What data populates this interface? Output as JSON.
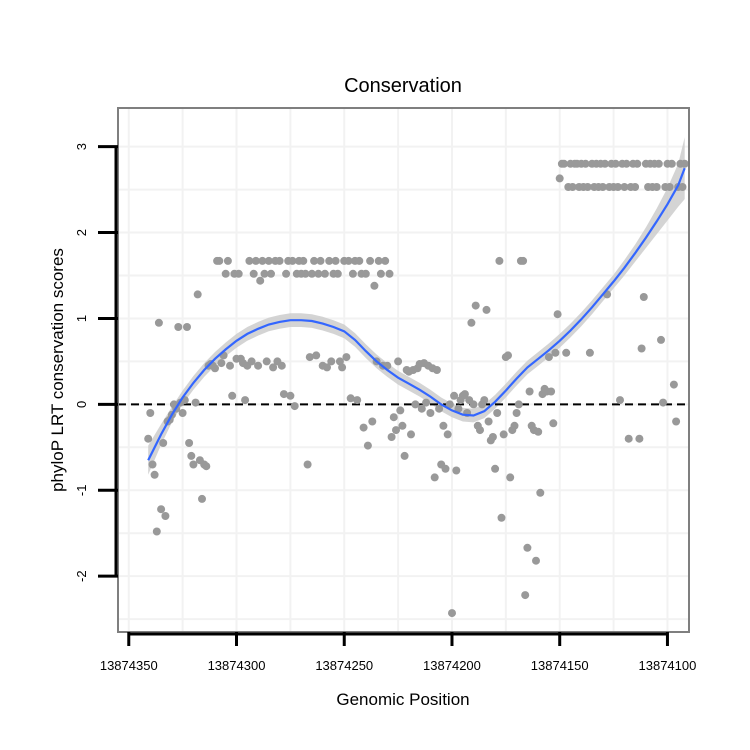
{
  "chart_data": {
    "type": "scatter",
    "title": "Conservation",
    "xlabel": "Genomic Position",
    "ylabel": "phyloP LRT conservation scores",
    "xlim": [
      13874355,
      13874090
    ],
    "ylim": [
      -2.65,
      3.45
    ],
    "x_reversed": true,
    "x_ticks": [
      13874350,
      13874300,
      13874250,
      13874200,
      13874150,
      13874100
    ],
    "x_tick_labels": [
      "13874350",
      "13874300",
      "13874250",
      "13874200",
      "13874150",
      "13874100"
    ],
    "y_ticks": [
      -2,
      -1,
      0,
      1,
      2,
      3
    ],
    "y_tick_labels": [
      "-2",
      "-1",
      "0",
      "1",
      "2",
      "3"
    ],
    "grid": true,
    "reference_line": {
      "y": 0,
      "style": "dashed",
      "color": "#000000"
    },
    "colors": {
      "points": "#999999",
      "smooth": "#3366ff",
      "band": "#cccccc",
      "panel_border": "#7f7f7f",
      "grid": "#f2f2f2"
    },
    "points": [
      [
        13874341,
        -0.4
      ],
      [
        13874340,
        -0.1
      ],
      [
        13874339,
        -0.7
      ],
      [
        13874338,
        -0.82
      ],
      [
        13874337,
        -1.48
      ],
      [
        13874336,
        0.95
      ],
      [
        13874335,
        -1.22
      ],
      [
        13874334,
        -0.45
      ],
      [
        13874333,
        -1.3
      ],
      [
        13874332,
        -0.2
      ],
      [
        13874331,
        -0.18
      ],
      [
        13874330,
        -0.12
      ],
      [
        13874329,
        0.0
      ],
      [
        13874328,
        -0.05
      ],
      [
        13874327,
        0.9
      ],
      [
        13874326,
        0.02
      ],
      [
        13874325,
        -0.1
      ],
      [
        13874324,
        0.05
      ],
      [
        13874323,
        0.9
      ],
      [
        13874322,
        -0.45
      ],
      [
        13874321,
        -0.6
      ],
      [
        13874320,
        -0.7
      ],
      [
        13874319,
        0.02
      ],
      [
        13874318,
        1.28
      ],
      [
        13874317,
        -0.65
      ],
      [
        13874316,
        -1.1
      ],
      [
        13874315,
        -0.7
      ],
      [
        13874314,
        -0.72
      ],
      [
        13874313,
        0.45
      ],
      [
        13874312,
        0.47
      ],
      [
        13874311,
        0.45
      ],
      [
        13874310,
        0.42
      ],
      [
        13874309,
        1.67
      ],
      [
        13874308,
        1.67
      ],
      [
        13874307,
        0.48
      ],
      [
        13874306,
        0.57
      ],
      [
        13874305,
        1.52
      ],
      [
        13874304,
        1.67
      ],
      [
        13874303,
        0.45
      ],
      [
        13874302,
        0.1
      ],
      [
        13874301,
        1.52
      ],
      [
        13874300,
        0.53
      ],
      [
        13874299,
        1.52
      ],
      [
        13874298,
        0.53
      ],
      [
        13874297,
        0.48
      ],
      [
        13874296,
        0.05
      ],
      [
        13874295,
        0.45
      ],
      [
        13874294,
        1.67
      ],
      [
        13874293,
        0.5
      ],
      [
        13874292,
        1.52
      ],
      [
        13874291,
        1.67
      ],
      [
        13874290,
        0.45
      ],
      [
        13874289,
        1.44
      ],
      [
        13874288,
        1.67
      ],
      [
        13874287,
        1.52
      ],
      [
        13874286,
        0.5
      ],
      [
        13874285,
        1.67
      ],
      [
        13874284,
        1.52
      ],
      [
        13874283,
        0.43
      ],
      [
        13874282,
        1.67
      ],
      [
        13874281,
        0.5
      ],
      [
        13874280,
        1.67
      ],
      [
        13874279,
        0.45
      ],
      [
        13874278,
        0.12
      ],
      [
        13874277,
        1.52
      ],
      [
        13874276,
        1.67
      ],
      [
        13874275,
        0.1
      ],
      [
        13874274,
        1.67
      ],
      [
        13874273,
        -0.02
      ],
      [
        13874272,
        1.52
      ],
      [
        13874271,
        1.67
      ],
      [
        13874270,
        1.52
      ],
      [
        13874269,
        1.67
      ],
      [
        13874268,
        1.52
      ],
      [
        13874267,
        -0.7
      ],
      [
        13874266,
        0.55
      ],
      [
        13874265,
        1.52
      ],
      [
        13874264,
        1.67
      ],
      [
        13874263,
        0.57
      ],
      [
        13874262,
        1.52
      ],
      [
        13874261,
        1.67
      ],
      [
        13874260,
        0.45
      ],
      [
        13874259,
        1.52
      ],
      [
        13874258,
        0.43
      ],
      [
        13874257,
        1.67
      ],
      [
        13874256,
        0.5
      ],
      [
        13874255,
        1.52
      ],
      [
        13874254,
        1.67
      ],
      [
        13874253,
        1.52
      ],
      [
        13874252,
        0.5
      ],
      [
        13874251,
        0.43
      ],
      [
        13874250,
        1.67
      ],
      [
        13874249,
        0.55
      ],
      [
        13874248,
        1.67
      ],
      [
        13874247,
        0.07
      ],
      [
        13874246,
        1.52
      ],
      [
        13874245,
        1.67
      ],
      [
        13874244,
        0.05
      ],
      [
        13874243,
        1.67
      ],
      [
        13874242,
        1.52
      ],
      [
        13874241,
        -0.27
      ],
      [
        13874240,
        1.52
      ],
      [
        13874239,
        -0.48
      ],
      [
        13874238,
        1.67
      ],
      [
        13874237,
        -0.2
      ],
      [
        13874236,
        1.38
      ],
      [
        13874235,
        0.5
      ],
      [
        13874234,
        1.67
      ],
      [
        13874233,
        1.52
      ],
      [
        13874232,
        0.45
      ],
      [
        13874231,
        1.67
      ],
      [
        13874230,
        0.45
      ],
      [
        13874229,
        1.52
      ],
      [
        13874228,
        -0.38
      ],
      [
        13874227,
        -0.15
      ],
      [
        13874226,
        -0.3
      ],
      [
        13874225,
        0.5
      ],
      [
        13874224,
        -0.07
      ],
      [
        13874223,
        -0.25
      ],
      [
        13874222,
        -0.6
      ],
      [
        13874221,
        0.4
      ],
      [
        13874220,
        0.38
      ],
      [
        13874219,
        -0.35
      ],
      [
        13874218,
        0.4
      ],
      [
        13874217,
        0.0
      ],
      [
        13874216,
        0.42
      ],
      [
        13874215,
        0.47
      ],
      [
        13874214,
        -0.05
      ],
      [
        13874213,
        0.48
      ],
      [
        13874212,
        0.02
      ],
      [
        13874211,
        0.45
      ],
      [
        13874210,
        -0.1
      ],
      [
        13874209,
        0.42
      ],
      [
        13874208,
        -0.85
      ],
      [
        13874207,
        0.4
      ],
      [
        13874206,
        -0.05
      ],
      [
        13874205,
        -0.7
      ],
      [
        13874204,
        -0.25
      ],
      [
        13874203,
        -0.75
      ],
      [
        13874202,
        -0.35
      ],
      [
        13874201,
        0.0
      ],
      [
        13874200,
        -2.43
      ],
      [
        13874199,
        0.1
      ],
      [
        13874198,
        -0.77
      ],
      [
        13874197,
        -0.05
      ],
      [
        13874196,
        0.05
      ],
      [
        13874195,
        0.1
      ],
      [
        13874194,
        0.12
      ],
      [
        13874193,
        -0.1
      ],
      [
        13874192,
        0.05
      ],
      [
        13874191,
        0.95
      ],
      [
        13874190,
        0.0
      ],
      [
        13874189,
        1.15
      ],
      [
        13874188,
        -0.25
      ],
      [
        13874187,
        -0.3
      ],
      [
        13874186,
        0.0
      ],
      [
        13874185,
        0.05
      ],
      [
        13874184,
        1.1
      ],
      [
        13874183,
        -0.2
      ],
      [
        13874182,
        -0.42
      ],
      [
        13874181,
        -0.38
      ],
      [
        13874180,
        -0.75
      ],
      [
        13874179,
        -0.1
      ],
      [
        13874178,
        1.67
      ],
      [
        13874177,
        -1.32
      ],
      [
        13874176,
        -0.35
      ],
      [
        13874175,
        0.55
      ],
      [
        13874174,
        0.57
      ],
      [
        13874173,
        -0.85
      ],
      [
        13874172,
        -0.3
      ],
      [
        13874171,
        -0.25
      ],
      [
        13874170,
        -0.1
      ],
      [
        13874169,
        0.0
      ],
      [
        13874168,
        1.67
      ],
      [
        13874167,
        1.67
      ],
      [
        13874166,
        -2.22
      ],
      [
        13874165,
        -1.67
      ],
      [
        13874164,
        0.15
      ],
      [
        13874163,
        -0.25
      ],
      [
        13874162,
        -0.3
      ],
      [
        13874161,
        -1.82
      ],
      [
        13874160,
        -0.32
      ],
      [
        13874159,
        -1.03
      ],
      [
        13874158,
        0.12
      ],
      [
        13874157,
        0.18
      ],
      [
        13874156,
        0.15
      ],
      [
        13874155,
        0.55
      ],
      [
        13874154,
        0.15
      ],
      [
        13874153,
        -0.22
      ],
      [
        13874152,
        0.6
      ],
      [
        13874151,
        1.05
      ],
      [
        13874150,
        2.63
      ],
      [
        13874149,
        2.8
      ],
      [
        13874148,
        2.8
      ],
      [
        13874147,
        0.6
      ],
      [
        13874146,
        2.53
      ],
      [
        13874145,
        2.8
      ],
      [
        13874144,
        2.53
      ],
      [
        13874143,
        2.8
      ],
      [
        13874142,
        2.8
      ],
      [
        13874141,
        2.53
      ],
      [
        13874140,
        2.8
      ],
      [
        13874139,
        2.53
      ],
      [
        13874138,
        2.8
      ],
      [
        13874137,
        2.53
      ],
      [
        13874136,
        0.6
      ],
      [
        13874135,
        2.8
      ],
      [
        13874134,
        2.53
      ],
      [
        13874133,
        2.8
      ],
      [
        13874132,
        2.53
      ],
      [
        13874131,
        2.8
      ],
      [
        13874130,
        2.53
      ],
      [
        13874129,
        2.8
      ],
      [
        13874128,
        1.28
      ],
      [
        13874127,
        2.53
      ],
      [
        13874126,
        2.8
      ],
      [
        13874125,
        2.53
      ],
      [
        13874124,
        2.8
      ],
      [
        13874123,
        2.53
      ],
      [
        13874122,
        0.05
      ],
      [
        13874121,
        2.8
      ],
      [
        13874120,
        2.53
      ],
      [
        13874119,
        2.8
      ],
      [
        13874118,
        -0.4
      ],
      [
        13874117,
        2.53
      ],
      [
        13874116,
        2.8
      ],
      [
        13874115,
        2.53
      ],
      [
        13874114,
        2.8
      ],
      [
        13874113,
        -0.4
      ],
      [
        13874112,
        0.65
      ],
      [
        13874111,
        1.25
      ],
      [
        13874110,
        2.8
      ],
      [
        13874109,
        2.53
      ],
      [
        13874108,
        2.8
      ],
      [
        13874107,
        2.53
      ],
      [
        13874106,
        2.8
      ],
      [
        13874105,
        2.53
      ],
      [
        13874104,
        2.8
      ],
      [
        13874103,
        0.75
      ],
      [
        13874102,
        0.02
      ],
      [
        13874101,
        2.53
      ],
      [
        13874100,
        2.8
      ],
      [
        13874099,
        2.53
      ],
      [
        13874098,
        2.8
      ],
      [
        13874097,
        0.23
      ],
      [
        13874096,
        -0.2
      ],
      [
        13874095,
        2.53
      ],
      [
        13874094,
        2.8
      ],
      [
        13874093,
        2.53
      ],
      [
        13874092,
        2.8
      ]
    ],
    "smooth": [
      {
        "x": 13874341,
        "y": -0.65,
        "lo": -0.82,
        "hi": -0.48
      },
      {
        "x": 13874335,
        "y": -0.35,
        "lo": -0.47,
        "hi": -0.23
      },
      {
        "x": 13874330,
        "y": -0.12,
        "lo": -0.21,
        "hi": -0.03
      },
      {
        "x": 13874325,
        "y": 0.08,
        "lo": 0.0,
        "hi": 0.16
      },
      {
        "x": 13874320,
        "y": 0.25,
        "lo": 0.17,
        "hi": 0.33
      },
      {
        "x": 13874315,
        "y": 0.4,
        "lo": 0.32,
        "hi": 0.48
      },
      {
        "x": 13874310,
        "y": 0.53,
        "lo": 0.45,
        "hi": 0.61
      },
      {
        "x": 13874305,
        "y": 0.64,
        "lo": 0.56,
        "hi": 0.72
      },
      {
        "x": 13874300,
        "y": 0.74,
        "lo": 0.66,
        "hi": 0.82
      },
      {
        "x": 13874295,
        "y": 0.82,
        "lo": 0.74,
        "hi": 0.9
      },
      {
        "x": 13874290,
        "y": 0.88,
        "lo": 0.8,
        "hi": 0.96
      },
      {
        "x": 13874285,
        "y": 0.93,
        "lo": 0.85,
        "hi": 1.01
      },
      {
        "x": 13874280,
        "y": 0.96,
        "lo": 0.88,
        "hi": 1.04
      },
      {
        "x": 13874275,
        "y": 0.98,
        "lo": 0.9,
        "hi": 1.06
      },
      {
        "x": 13874270,
        "y": 0.98,
        "lo": 0.9,
        "hi": 1.06
      },
      {
        "x": 13874265,
        "y": 0.97,
        "lo": 0.89,
        "hi": 1.05
      },
      {
        "x": 13874260,
        "y": 0.94,
        "lo": 0.86,
        "hi": 1.02
      },
      {
        "x": 13874255,
        "y": 0.9,
        "lo": 0.82,
        "hi": 0.98
      },
      {
        "x": 13874250,
        "y": 0.85,
        "lo": 0.77,
        "hi": 0.93
      },
      {
        "x": 13874245,
        "y": 0.75,
        "lo": 0.67,
        "hi": 0.83
      },
      {
        "x": 13874240,
        "y": 0.62,
        "lo": 0.54,
        "hi": 0.7
      },
      {
        "x": 13874235,
        "y": 0.5,
        "lo": 0.42,
        "hi": 0.58
      },
      {
        "x": 13874230,
        "y": 0.4,
        "lo": 0.32,
        "hi": 0.48
      },
      {
        "x": 13874225,
        "y": 0.31,
        "lo": 0.23,
        "hi": 0.39
      },
      {
        "x": 13874220,
        "y": 0.24,
        "lo": 0.16,
        "hi": 0.32
      },
      {
        "x": 13874215,
        "y": 0.17,
        "lo": 0.09,
        "hi": 0.25
      },
      {
        "x": 13874210,
        "y": 0.09,
        "lo": 0.01,
        "hi": 0.17
      },
      {
        "x": 13874205,
        "y": 0.0,
        "lo": -0.08,
        "hi": 0.08
      },
      {
        "x": 13874200,
        "y": -0.07,
        "lo": -0.15,
        "hi": 0.01
      },
      {
        "x": 13874195,
        "y": -0.12,
        "lo": -0.2,
        "hi": -0.04
      },
      {
        "x": 13874190,
        "y": -0.13,
        "lo": -0.21,
        "hi": -0.05
      },
      {
        "x": 13874185,
        "y": -0.08,
        "lo": -0.16,
        "hi": 0.0
      },
      {
        "x": 13874180,
        "y": 0.03,
        "lo": -0.05,
        "hi": 0.11
      },
      {
        "x": 13874175,
        "y": 0.16,
        "lo": 0.08,
        "hi": 0.24
      },
      {
        "x": 13874170,
        "y": 0.3,
        "lo": 0.22,
        "hi": 0.38
      },
      {
        "x": 13874165,
        "y": 0.43,
        "lo": 0.35,
        "hi": 0.51
      },
      {
        "x": 13874160,
        "y": 0.53,
        "lo": 0.45,
        "hi": 0.61
      },
      {
        "x": 13874155,
        "y": 0.63,
        "lo": 0.55,
        "hi": 0.71
      },
      {
        "x": 13874150,
        "y": 0.74,
        "lo": 0.66,
        "hi": 0.82
      },
      {
        "x": 13874145,
        "y": 0.86,
        "lo": 0.78,
        "hi": 0.94
      },
      {
        "x": 13874140,
        "y": 0.99,
        "lo": 0.91,
        "hi": 1.07
      },
      {
        "x": 13874135,
        "y": 1.13,
        "lo": 1.05,
        "hi": 1.21
      },
      {
        "x": 13874130,
        "y": 1.28,
        "lo": 1.2,
        "hi": 1.36
      },
      {
        "x": 13874125,
        "y": 1.43,
        "lo": 1.35,
        "hi": 1.51
      },
      {
        "x": 13874120,
        "y": 1.59,
        "lo": 1.5,
        "hi": 1.68
      },
      {
        "x": 13874115,
        "y": 1.76,
        "lo": 1.66,
        "hi": 1.86
      },
      {
        "x": 13874110,
        "y": 1.94,
        "lo": 1.82,
        "hi": 2.06
      },
      {
        "x": 13874105,
        "y": 2.13,
        "lo": 1.98,
        "hi": 2.28
      },
      {
        "x": 13874100,
        "y": 2.33,
        "lo": 2.14,
        "hi": 2.52
      },
      {
        "x": 13874095,
        "y": 2.55,
        "lo": 2.3,
        "hi": 2.8
      },
      {
        "x": 13874092,
        "y": 2.75,
        "lo": 2.39,
        "hi": 3.11
      }
    ]
  }
}
